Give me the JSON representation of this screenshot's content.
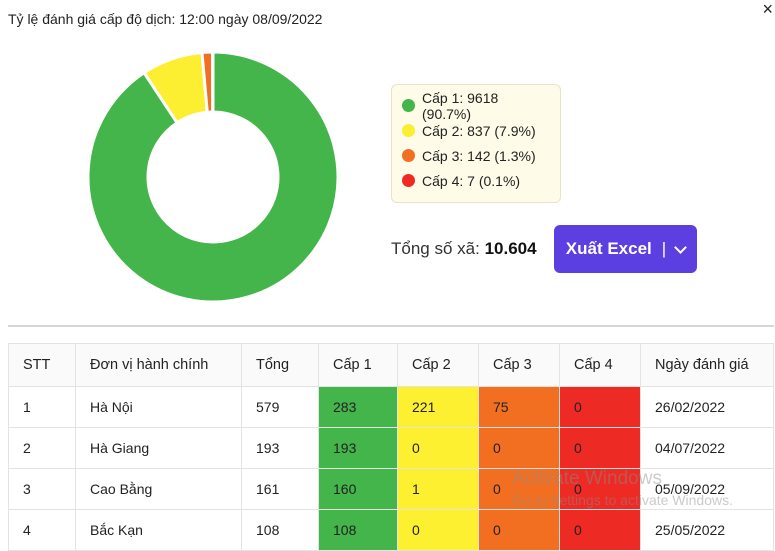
{
  "header": {
    "title": "Tỷ lệ đánh giá cấp độ dịch: 12:00 ngày 08/09/2022",
    "close_symbol": "×"
  },
  "chart_data": {
    "type": "pie",
    "categories": [
      "Cấp 1",
      "Cấp 2",
      "Cấp 3",
      "Cấp 4"
    ],
    "values": [
      9618,
      837,
      142,
      7
    ],
    "percents": [
      "90.7%",
      "7.9%",
      "1.3%",
      "0.1%"
    ],
    "colors": [
      "#43b54a",
      "#fcee30",
      "#f26f22",
      "#ee2a24"
    ]
  },
  "legend": {
    "items": [
      {
        "label": "Cấp 1: 9618 (90.7%)",
        "color": "#43b54a"
      },
      {
        "label": "Cấp 2: 837 (7.9%)",
        "color": "#fcee30"
      },
      {
        "label": "Cấp 3: 142 (1.3%)",
        "color": "#f26f22"
      },
      {
        "label": "Cấp 4: 7 (0.1%)",
        "color": "#ee2a24"
      }
    ]
  },
  "summary": {
    "total_label": "Tổng số xã:",
    "total_value": "10.604"
  },
  "export": {
    "label": "Xuất Excel",
    "separator": "|"
  },
  "table": {
    "columns": [
      "STT",
      "Đơn vị hành chính",
      "Tổng",
      "Cấp 1",
      "Cấp 2",
      "Cấp 3",
      "Cấp 4",
      "Ngày đánh giá"
    ],
    "rows": [
      [
        "1",
        "Hà Nội",
        "579",
        "283",
        "221",
        "75",
        "0",
        "26/02/2022"
      ],
      [
        "2",
        "Hà Giang",
        "193",
        "193",
        "0",
        "0",
        "0",
        "04/07/2022"
      ],
      [
        "3",
        "Cao Bằng",
        "161",
        "160",
        "1",
        "0",
        "0",
        "05/09/2022"
      ],
      [
        "4",
        "Bắc Kạn",
        "108",
        "108",
        "0",
        "0",
        "0",
        "25/05/2022"
      ]
    ]
  },
  "watermark": {
    "line1": "Activate Windows",
    "line2": "Go to Settings to activate Windows."
  }
}
